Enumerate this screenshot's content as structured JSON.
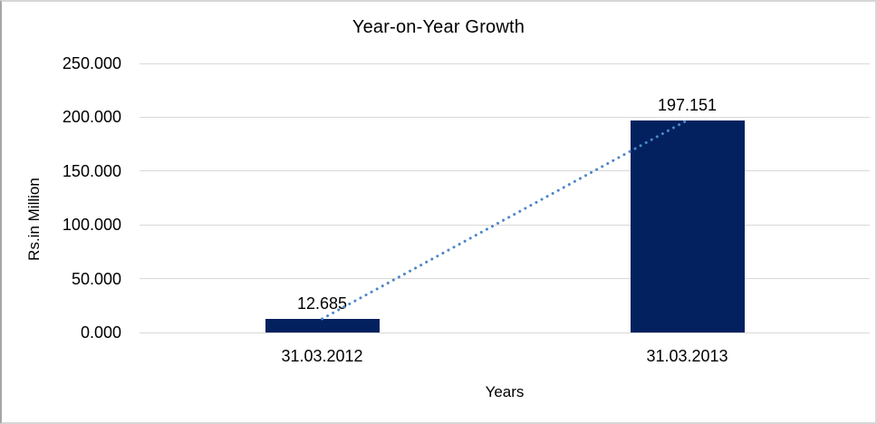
{
  "chart_data": {
    "type": "bar",
    "title": "Year-on-Year Growth",
    "xlabel": "Years",
    "ylabel": "Rs.in Million",
    "categories": [
      "31.03.2012",
      "31.03.2013"
    ],
    "values": [
      12.685,
      197.151
    ],
    "data_labels": [
      "12.685",
      "197.151"
    ],
    "yticks": [
      {
        "value": 0,
        "label": "0.000"
      },
      {
        "value": 50,
        "label": "50.000"
      },
      {
        "value": 100,
        "label": "100.000"
      },
      {
        "value": 150,
        "label": "150.000"
      },
      {
        "value": 200,
        "label": "200.000"
      },
      {
        "value": 250,
        "label": "250.000"
      }
    ],
    "ylim": [
      0,
      250
    ],
    "grid": true,
    "legend": "none",
    "trendline": {
      "style": "dotted",
      "connects": [
        12.685,
        197.151
      ]
    },
    "colors": {
      "bar": "#02215E",
      "trendline": "#4E86C8",
      "gridline": "#D9D9D9",
      "text": "#000000",
      "background": "#FFFFFF"
    }
  }
}
